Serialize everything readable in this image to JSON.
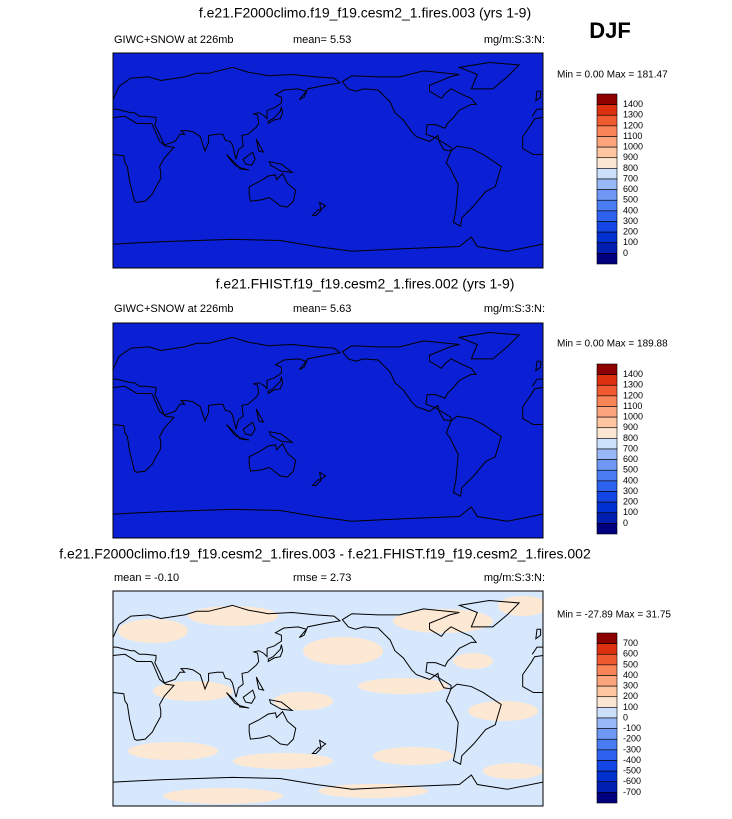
{
  "season": "DJF",
  "colorbar_colors": [
    "#00007e",
    "#001eb0",
    "#0030d0",
    "#1446e6",
    "#2e62ee",
    "#4a7cf2",
    "#6e98f4",
    "#98b8f8",
    "#cce0fc",
    "#fbe6d2",
    "#fdc6a0",
    "#fca57c",
    "#f88458",
    "#f05a30",
    "#dc3010",
    "#8c0000"
  ],
  "panels": [
    {
      "title": "f.e21.F2000climo.f19_f19.cesm2_1.fires.003 (yrs 1-9)",
      "left": "GIWC+SNOW at 226mb",
      "middle": "mean=  5.53",
      "units": "mg/m:S:3:N:",
      "minmax": "Min =   0.00 Max = 181.47",
      "map_fill": "#0b20d5",
      "labels": [
        "1400",
        "1300",
        "1200",
        "1100",
        "1000",
        "900",
        "800",
        "700",
        "600",
        "500",
        "400",
        "300",
        "200",
        "100",
        "0"
      ]
    },
    {
      "title": "f.e21.FHIST.f19_f19.cesm2_1.fires.002 (yrs 1-9)",
      "left": "GIWC+SNOW at 226mb",
      "middle": "mean=  5.63",
      "units": "mg/m:S:3:N:",
      "minmax": "Min =   0.00 Max = 189.88",
      "map_fill": "#0b20d5",
      "labels": [
        "1400",
        "1300",
        "1200",
        "1100",
        "1000",
        "900",
        "800",
        "700",
        "600",
        "500",
        "400",
        "300",
        "200",
        "100",
        "0"
      ]
    },
    {
      "title": "f.e21.F2000climo.f19_f19.cesm2_1.fires.003 - f.e21.FHIST.f19_f19.cesm2_1.fires.002",
      "left": "mean =  -0.10",
      "middle": "rmse =  2.73",
      "units": "mg/m:S:3:N:",
      "minmax": "Min = -27.89 Max =  31.75",
      "map_fill": "#d8e8fc",
      "labels": [
        "700",
        "600",
        "500",
        "400",
        "300",
        "200",
        "100",
        "0",
        "-100",
        "-200",
        "-300",
        "-400",
        "-500",
        "-600",
        "-700"
      ]
    }
  ]
}
